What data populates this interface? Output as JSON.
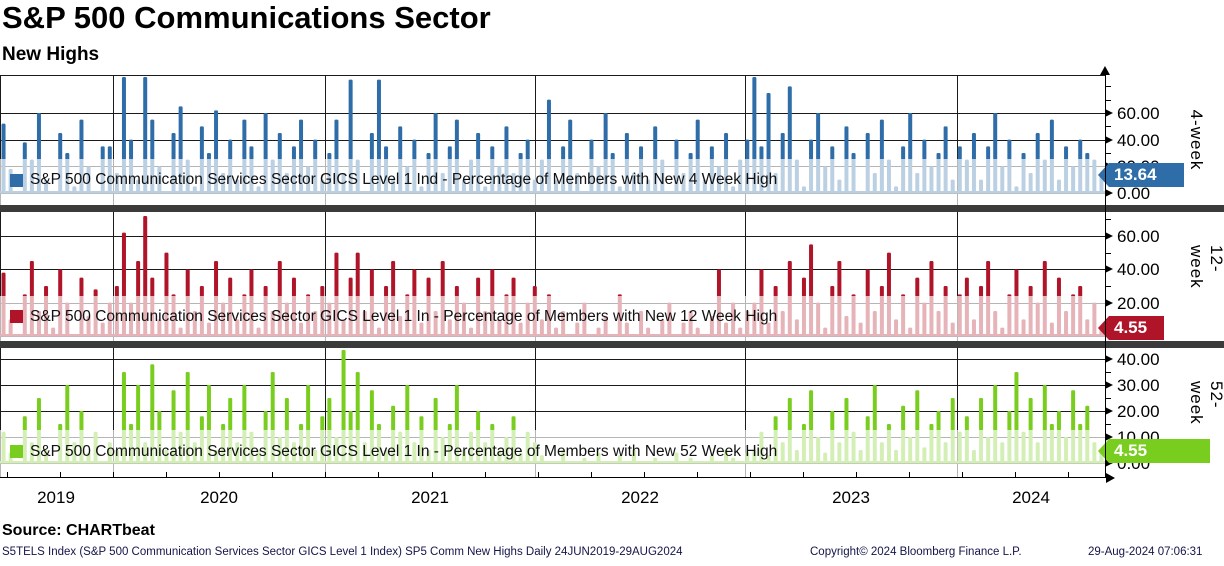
{
  "header": {
    "title": "S&P 500 Communications Sector",
    "subtitle": "New Highs"
  },
  "source_line": "Source: CHARTbeat",
  "footer": {
    "left": "S5TELS Index (S&P 500 Communication Services Sector GICS Level 1 Index) SP5 Comm New Highs  Daily 24JUN2019-29AUG2024",
    "copyright": "Copyright© 2024 Bloomberg Finance L.P.",
    "timestamp": "29-Aug-2024 07:06:31"
  },
  "colors": {
    "panel_4w": "#2F6DA8",
    "panel_12w": "#B01428",
    "panel_52w": "#79CD1E",
    "separator": "#3b3b3b",
    "gridline": "#1a1a1a",
    "legend_band": "rgba(255,255,255,0.68)"
  },
  "chart_data": {
    "type": "line",
    "title": "S&P 500 Communications Sector - New Highs",
    "x_range": "24JUN2019-29AUG2024",
    "x_frequency": "Daily",
    "x_year_labels": [
      "2019",
      "2020",
      "2021",
      "2022",
      "2023",
      "2024"
    ],
    "grid": true,
    "legend_position": "inside-bottom-left",
    "panels": [
      {
        "id": "4-week",
        "axis_label": "4-week",
        "legend": "S&P 500 Communication Services Sector GICS Level 1 Ind - Percentage of Members with New 4 Week High",
        "last_value": "13.64",
        "color": "#2F6DA8",
        "ylim": [
          0,
          88
        ],
        "ticks": [
          {
            "value": 60,
            "label": "60.00"
          },
          {
            "value": 40,
            "label": "40.00"
          },
          {
            "value": 20,
            "label": "20.00"
          },
          {
            "value": 0,
            "label": "0.00"
          }
        ],
        "values": [
          52,
          18,
          0,
          38,
          25,
          60,
          10,
          0,
          45,
          30,
          5,
          55,
          20,
          0,
          35,
          35,
          15,
          88,
          40,
          10,
          88,
          55,
          20,
          0,
          45,
          65,
          25,
          5,
          50,
          30,
          62,
          15,
          40,
          10,
          55,
          35,
          5,
          60,
          25,
          45,
          15,
          35,
          55,
          20,
          40,
          10,
          30,
          55,
          15,
          85,
          25,
          0,
          45,
          85,
          35,
          10,
          50,
          20,
          40,
          5,
          30,
          60,
          15,
          35,
          55,
          10,
          25,
          45,
          5,
          35,
          20,
          50,
          15,
          30,
          40,
          10,
          25,
          70,
          10,
          35,
          55,
          15,
          0,
          40,
          20,
          60,
          30,
          5,
          45,
          15,
          35,
          10,
          50,
          25,
          0,
          40,
          15,
          30,
          55,
          10,
          35,
          20,
          45,
          5,
          25,
          40,
          88,
          35,
          75,
          15,
          45,
          80,
          25,
          5,
          40,
          60,
          20,
          35,
          10,
          50,
          30,
          0,
          45,
          15,
          55,
          25,
          5,
          35,
          60,
          15,
          40,
          20,
          30,
          50,
          10,
          35,
          25,
          45,
          10,
          35,
          60,
          20,
          40,
          5,
          30,
          15,
          45,
          25,
          55,
          10,
          35,
          20,
          40,
          30,
          25,
          13.64
        ]
      },
      {
        "id": "12-week",
        "axis_label": "12-week",
        "legend": "S&P 500 Communication Services Sector GICS Level 1 In - Percentage of Members with New 12 Week High",
        "last_value": "4.55",
        "color": "#B01428",
        "ylim": [
          0,
          74
        ],
        "ticks": [
          {
            "value": 60,
            "label": "60.00"
          },
          {
            "value": 40,
            "label": "40.00"
          },
          {
            "value": 20,
            "label": "20.00"
          }
        ],
        "values": [
          38,
          10,
          0,
          25,
          45,
          15,
          30,
          5,
          40,
          20,
          0,
          35,
          12,
          28,
          8,
          20,
          30,
          62,
          20,
          45,
          72,
          35,
          10,
          50,
          25,
          5,
          40,
          15,
          30,
          8,
          45,
          20,
          35,
          10,
          25,
          40,
          5,
          30,
          15,
          45,
          20,
          35,
          8,
          25,
          15,
          30,
          20,
          50,
          10,
          35,
          50,
          15,
          40,
          5,
          30,
          45,
          12,
          25,
          40,
          8,
          35,
          15,
          45,
          10,
          30,
          20,
          5,
          35,
          15,
          40,
          10,
          25,
          35,
          8,
          20,
          30,
          10,
          25,
          5,
          15,
          0,
          8,
          20,
          0,
          5,
          12,
          0,
          25,
          8,
          0,
          15,
          5,
          0,
          10,
          20,
          0,
          8,
          15,
          5,
          0,
          12,
          40,
          8,
          20,
          5,
          15,
          20,
          40,
          8,
          30,
          15,
          45,
          10,
          35,
          55,
          20,
          5,
          30,
          45,
          12,
          25,
          8,
          40,
          15,
          30,
          50,
          10,
          25,
          5,
          35,
          20,
          45,
          15,
          30,
          8,
          25,
          35,
          10,
          30,
          45,
          15,
          5,
          25,
          40,
          10,
          30,
          20,
          45,
          8,
          35,
          15,
          25,
          30,
          10,
          20,
          4.55
        ]
      },
      {
        "id": "52-week",
        "axis_label": "52-week",
        "legend": "S&P 500 Communication Services Sector GICS Level 1 In - Percentage of Members with New 52 Week High",
        "last_value": "4.55",
        "color": "#79CD1E",
        "ylim": [
          0,
          44
        ],
        "ticks": [
          {
            "value": 40,
            "label": "40.00"
          },
          {
            "value": 30,
            "label": "30.00"
          },
          {
            "value": 20,
            "label": "20.00"
          },
          {
            "value": 10,
            "label": "10.00"
          },
          {
            "value": 0,
            "label": "0.00"
          }
        ],
        "values": [
          12,
          4,
          0,
          18,
          8,
          25,
          5,
          0,
          15,
          30,
          8,
          20,
          4,
          12,
          0,
          8,
          5,
          35,
          15,
          30,
          8,
          38,
          20,
          5,
          28,
          12,
          35,
          8,
          18,
          30,
          5,
          15,
          25,
          8,
          30,
          12,
          5,
          20,
          35,
          10,
          25,
          8,
          15,
          30,
          5,
          18,
          25,
          10,
          44,
          20,
          35,
          8,
          28,
          15,
          5,
          22,
          12,
          30,
          8,
          18,
          5,
          25,
          10,
          15,
          30,
          5,
          12,
          20,
          8,
          15,
          5,
          10,
          18,
          4,
          12,
          8,
          3,
          0,
          0,
          5,
          0,
          0,
          2,
          0,
          4,
          0,
          0,
          3,
          0,
          5,
          0,
          0,
          2,
          0,
          0,
          4,
          0,
          2,
          0,
          0,
          3,
          0,
          5,
          2,
          0,
          4,
          5,
          12,
          3,
          18,
          8,
          25,
          5,
          15,
          28,
          10,
          4,
          20,
          8,
          25,
          12,
          5,
          18,
          30,
          8,
          15,
          5,
          22,
          10,
          28,
          6,
          15,
          20,
          8,
          25,
          12,
          18,
          5,
          25,
          10,
          30,
          8,
          20,
          35,
          12,
          25,
          8,
          30,
          15,
          20,
          10,
          28,
          15,
          22,
          8,
          4.55
        ]
      }
    ]
  }
}
